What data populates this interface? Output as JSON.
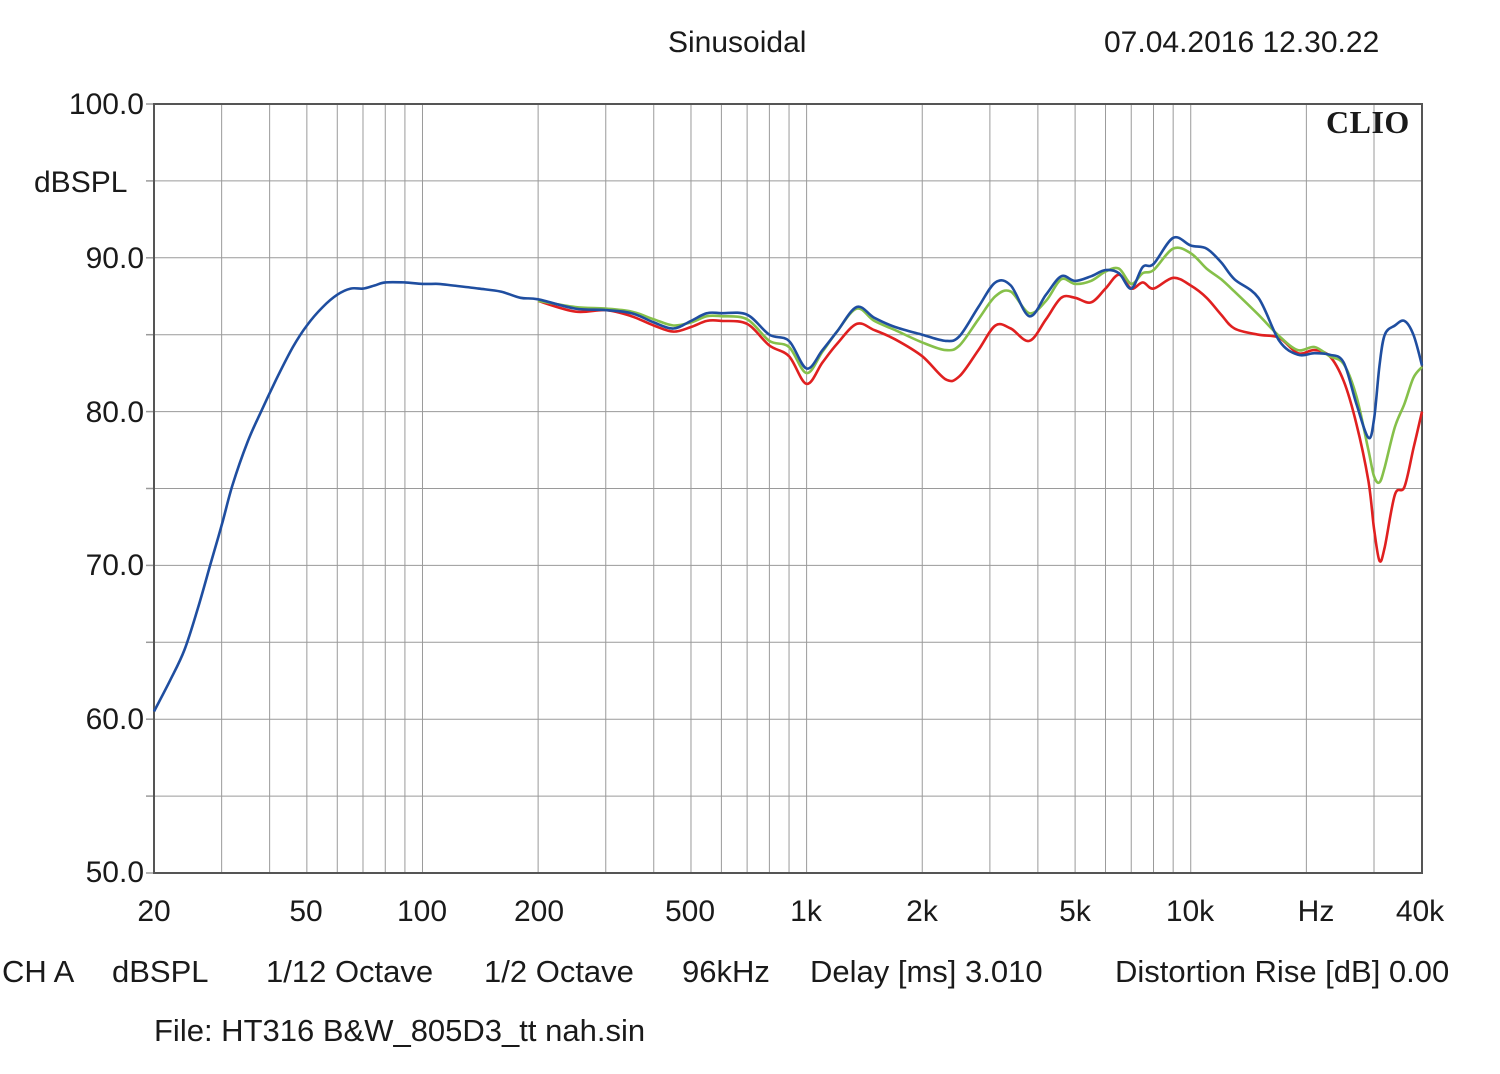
{
  "header": {
    "title": "Sinusoidal",
    "timestamp": "07.04.2016 12.30.22",
    "brand": "CLIO"
  },
  "axis": {
    "y_unit": "dBSPL",
    "y_ticks": [
      "100.0",
      "90.0",
      "80.0",
      "70.0",
      "60.0",
      "50.0"
    ],
    "x_ticks": [
      "20",
      "50",
      "100",
      "200",
      "500",
      "1k",
      "2k",
      "5k",
      "10k",
      "Hz",
      "40k"
    ]
  },
  "settings": {
    "channel": "CH A",
    "unit": "dBSPL",
    "smoothing": "1/12 Octave",
    "octave": "1/2 Octave",
    "sample_rate": "96kHz",
    "delay": "Delay [ms] 3.010",
    "distortion": "Distortion Rise [dB] 0.00"
  },
  "file": "File: HT316 B&W_805D3_tt nah.sin",
  "colors": {
    "background": "#ffffff",
    "grid": "#9a9a9a",
    "frame": "#555555",
    "red": "#e02020",
    "green": "#86c04a",
    "blue": "#1f4ea0"
  },
  "chart_data": {
    "type": "line",
    "title": "Sinusoidal",
    "xlabel": "Hz",
    "ylabel": "dBSPL",
    "x_scale": "log",
    "xlim": [
      20,
      40000
    ],
    "ylim": [
      50,
      100
    ],
    "grid": true,
    "series": [
      {
        "color": "red",
        "points": [
          [
            200,
            87.2
          ],
          [
            250,
            86.5
          ],
          [
            300,
            86.6
          ],
          [
            350,
            86.2
          ],
          [
            400,
            85.6
          ],
          [
            450,
            85.2
          ],
          [
            500,
            85.5
          ],
          [
            550,
            85.9
          ],
          [
            600,
            85.9
          ],
          [
            700,
            85.7
          ],
          [
            800,
            84.3
          ],
          [
            900,
            83.6
          ],
          [
            1000,
            81.8
          ],
          [
            1100,
            83.2
          ],
          [
            1200,
            84.4
          ],
          [
            1350,
            85.7
          ],
          [
            1500,
            85.3
          ],
          [
            1700,
            84.7
          ],
          [
            2000,
            83.6
          ],
          [
            2300,
            82.1
          ],
          [
            2500,
            82.3
          ],
          [
            2800,
            84.0
          ],
          [
            3100,
            85.6
          ],
          [
            3400,
            85.4
          ],
          [
            3800,
            84.6
          ],
          [
            4200,
            86.0
          ],
          [
            4600,
            87.4
          ],
          [
            5000,
            87.4
          ],
          [
            5500,
            87.1
          ],
          [
            6000,
            88.0
          ],
          [
            6500,
            88.9
          ],
          [
            7000,
            88.0
          ],
          [
            7500,
            88.4
          ],
          [
            8000,
            88.0
          ],
          [
            9000,
            88.7
          ],
          [
            10000,
            88.2
          ],
          [
            11000,
            87.4
          ],
          [
            12000,
            86.3
          ],
          [
            13000,
            85.4
          ],
          [
            15000,
            85.0
          ],
          [
            17000,
            84.8
          ],
          [
            19000,
            83.8
          ],
          [
            21000,
            84.0
          ],
          [
            23000,
            83.6
          ],
          [
            25000,
            82.0
          ],
          [
            27000,
            79.2
          ],
          [
            29000,
            75.5
          ],
          [
            30000,
            72.4
          ],
          [
            31000,
            70.3
          ],
          [
            32000,
            71.2
          ],
          [
            34000,
            74.6
          ],
          [
            36000,
            75.1
          ],
          [
            38000,
            77.6
          ],
          [
            40000,
            80.0
          ]
        ]
      },
      {
        "color": "green",
        "points": [
          [
            200,
            87.2
          ],
          [
            250,
            86.8
          ],
          [
            300,
            86.7
          ],
          [
            350,
            86.5
          ],
          [
            400,
            86.0
          ],
          [
            450,
            85.6
          ],
          [
            500,
            85.8
          ],
          [
            550,
            86.2
          ],
          [
            600,
            86.2
          ],
          [
            700,
            86.0
          ],
          [
            800,
            84.6
          ],
          [
            900,
            84.2
          ],
          [
            1000,
            82.5
          ],
          [
            1100,
            83.9
          ],
          [
            1200,
            85.2
          ],
          [
            1350,
            86.7
          ],
          [
            1500,
            85.9
          ],
          [
            1700,
            85.3
          ],
          [
            2000,
            84.5
          ],
          [
            2300,
            84.0
          ],
          [
            2500,
            84.3
          ],
          [
            2800,
            86.0
          ],
          [
            3100,
            87.5
          ],
          [
            3400,
            87.8
          ],
          [
            3800,
            86.4
          ],
          [
            4200,
            87.2
          ],
          [
            4600,
            88.6
          ],
          [
            5000,
            88.3
          ],
          [
            5500,
            88.5
          ],
          [
            6000,
            89.1
          ],
          [
            6500,
            89.3
          ],
          [
            7000,
            88.3
          ],
          [
            7500,
            89.0
          ],
          [
            8000,
            89.2
          ],
          [
            9000,
            90.6
          ],
          [
            10000,
            90.3
          ],
          [
            11000,
            89.3
          ],
          [
            12000,
            88.6
          ],
          [
            13000,
            87.8
          ],
          [
            15000,
            86.3
          ],
          [
            17000,
            84.9
          ],
          [
            19000,
            84.0
          ],
          [
            21000,
            84.2
          ],
          [
            23000,
            83.6
          ],
          [
            25000,
            83.1
          ],
          [
            27000,
            81.0
          ],
          [
            29000,
            77.5
          ],
          [
            30000,
            75.8
          ],
          [
            31000,
            75.4
          ],
          [
            32000,
            76.4
          ],
          [
            34000,
            79.0
          ],
          [
            36000,
            80.5
          ],
          [
            38000,
            82.2
          ],
          [
            40000,
            82.9
          ]
        ]
      },
      {
        "color": "blue",
        "points": [
          [
            20,
            60.5
          ],
          [
            22,
            62.5
          ],
          [
            24,
            64.5
          ],
          [
            26,
            67.2
          ],
          [
            28,
            70.0
          ],
          [
            30,
            72.6
          ],
          [
            32,
            75.2
          ],
          [
            35,
            78.0
          ],
          [
            38,
            80.0
          ],
          [
            42,
            82.3
          ],
          [
            46,
            84.2
          ],
          [
            50,
            85.6
          ],
          [
            55,
            86.8
          ],
          [
            60,
            87.6
          ],
          [
            65,
            88.0
          ],
          [
            70,
            88.0
          ],
          [
            75,
            88.2
          ],
          [
            80,
            88.4
          ],
          [
            90,
            88.4
          ],
          [
            100,
            88.3
          ],
          [
            110,
            88.3
          ],
          [
            120,
            88.2
          ],
          [
            140,
            88.0
          ],
          [
            160,
            87.8
          ],
          [
            180,
            87.4
          ],
          [
            200,
            87.3
          ],
          [
            250,
            86.7
          ],
          [
            300,
            86.6
          ],
          [
            350,
            86.4
          ],
          [
            400,
            85.8
          ],
          [
            450,
            85.4
          ],
          [
            500,
            85.9
          ],
          [
            550,
            86.4
          ],
          [
            600,
            86.4
          ],
          [
            700,
            86.3
          ],
          [
            800,
            85.0
          ],
          [
            900,
            84.6
          ],
          [
            1000,
            82.8
          ],
          [
            1100,
            84.0
          ],
          [
            1200,
            85.2
          ],
          [
            1350,
            86.8
          ],
          [
            1500,
            86.1
          ],
          [
            1700,
            85.5
          ],
          [
            2000,
            85.0
          ],
          [
            2300,
            84.6
          ],
          [
            2500,
            84.9
          ],
          [
            2800,
            86.8
          ],
          [
            3100,
            88.4
          ],
          [
            3400,
            88.2
          ],
          [
            3800,
            86.2
          ],
          [
            4200,
            87.6
          ],
          [
            4600,
            88.8
          ],
          [
            5000,
            88.5
          ],
          [
            5500,
            88.8
          ],
          [
            6000,
            89.2
          ],
          [
            6500,
            89.0
          ],
          [
            7000,
            88.0
          ],
          [
            7500,
            89.4
          ],
          [
            8000,
            89.6
          ],
          [
            9000,
            91.3
          ],
          [
            10000,
            90.8
          ],
          [
            11000,
            90.6
          ],
          [
            12000,
            89.7
          ],
          [
            13000,
            88.6
          ],
          [
            15000,
            87.4
          ],
          [
            17000,
            84.6
          ],
          [
            19000,
            83.7
          ],
          [
            21000,
            83.8
          ],
          [
            23000,
            83.7
          ],
          [
            25000,
            83.2
          ],
          [
            27000,
            80.5
          ],
          [
            29000,
            78.3
          ],
          [
            30000,
            79.5
          ],
          [
            31000,
            83.0
          ],
          [
            32000,
            85.0
          ],
          [
            34000,
            85.6
          ],
          [
            36000,
            85.9
          ],
          [
            38000,
            85.0
          ],
          [
            40000,
            83.0
          ]
        ]
      }
    ]
  }
}
